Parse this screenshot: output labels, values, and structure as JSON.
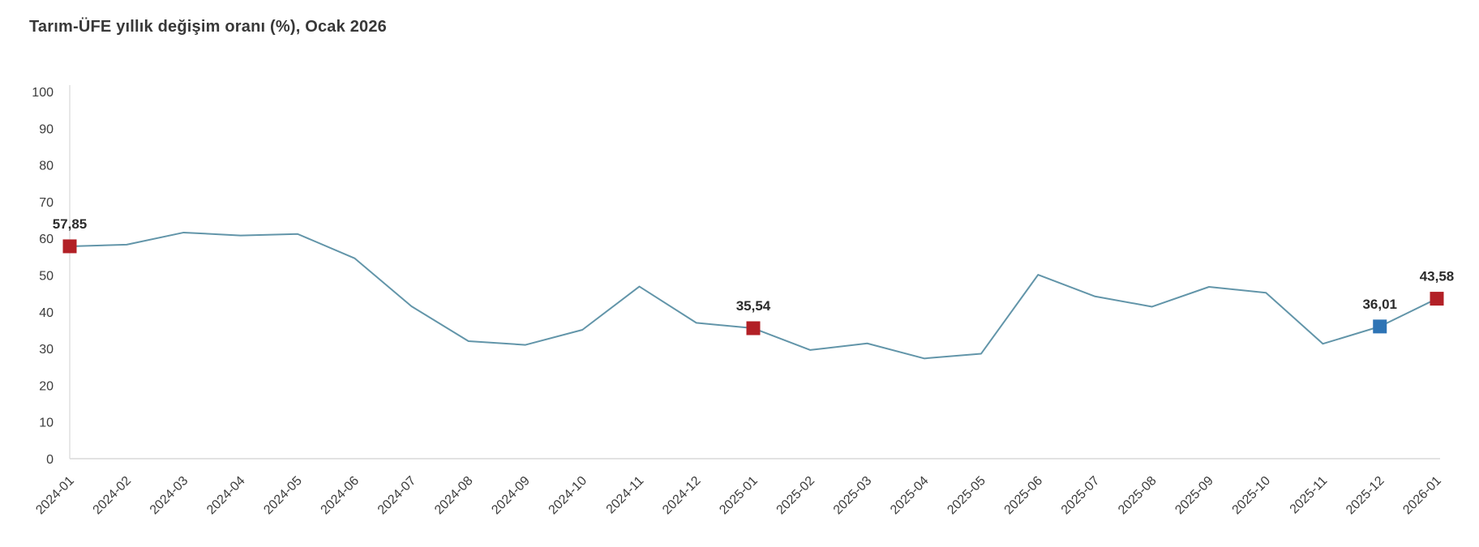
{
  "chart_data": {
    "type": "line",
    "title": "Tarım-ÜFE yıllık değişim oranı (%), Ocak 2026",
    "x": [
      "2024-01",
      "2024-02",
      "2024-03",
      "2024-04",
      "2024-05",
      "2024-06",
      "2024-07",
      "2024-08",
      "2024-09",
      "2024-10",
      "2024-11",
      "2024-12",
      "2025-01",
      "2025-02",
      "2025-03",
      "2025-04",
      "2025-05",
      "2025-06",
      "2025-07",
      "2025-08",
      "2025-09",
      "2025-10",
      "2025-11",
      "2025-12",
      "2026-01"
    ],
    "values": [
      57.85,
      58.3,
      61.6,
      60.8,
      61.2,
      54.6,
      41.5,
      32.0,
      31.0,
      35.1,
      46.9,
      37.0,
      35.54,
      29.6,
      31.4,
      27.3,
      28.6,
      50.1,
      44.2,
      41.4,
      46.8,
      45.2,
      31.3,
      36.01,
      43.58
    ],
    "ylim": [
      0,
      100
    ],
    "ytick_step": 10,
    "grid": false,
    "legend": "none",
    "x_tick_rotation_deg": -45,
    "marked_points": [
      {
        "x": "2024-01",
        "value": 57.85,
        "label": "57,85",
        "color": "#b22026"
      },
      {
        "x": "2025-01",
        "value": 35.54,
        "label": "35,54",
        "color": "#b22026"
      },
      {
        "x": "2025-12",
        "value": 36.01,
        "label": "36,01",
        "color": "#2e74b5"
      },
      {
        "x": "2026-01",
        "value": 43.58,
        "label": "43,58",
        "color": "#b22026"
      }
    ],
    "colors": {
      "line": "#6295a9",
      "marker_red": "#b22026",
      "marker_blue": "#2e74b5",
      "axis": "#d9d9d9",
      "tick_text": "#3c3c3c",
      "title_text": "#383838"
    }
  }
}
